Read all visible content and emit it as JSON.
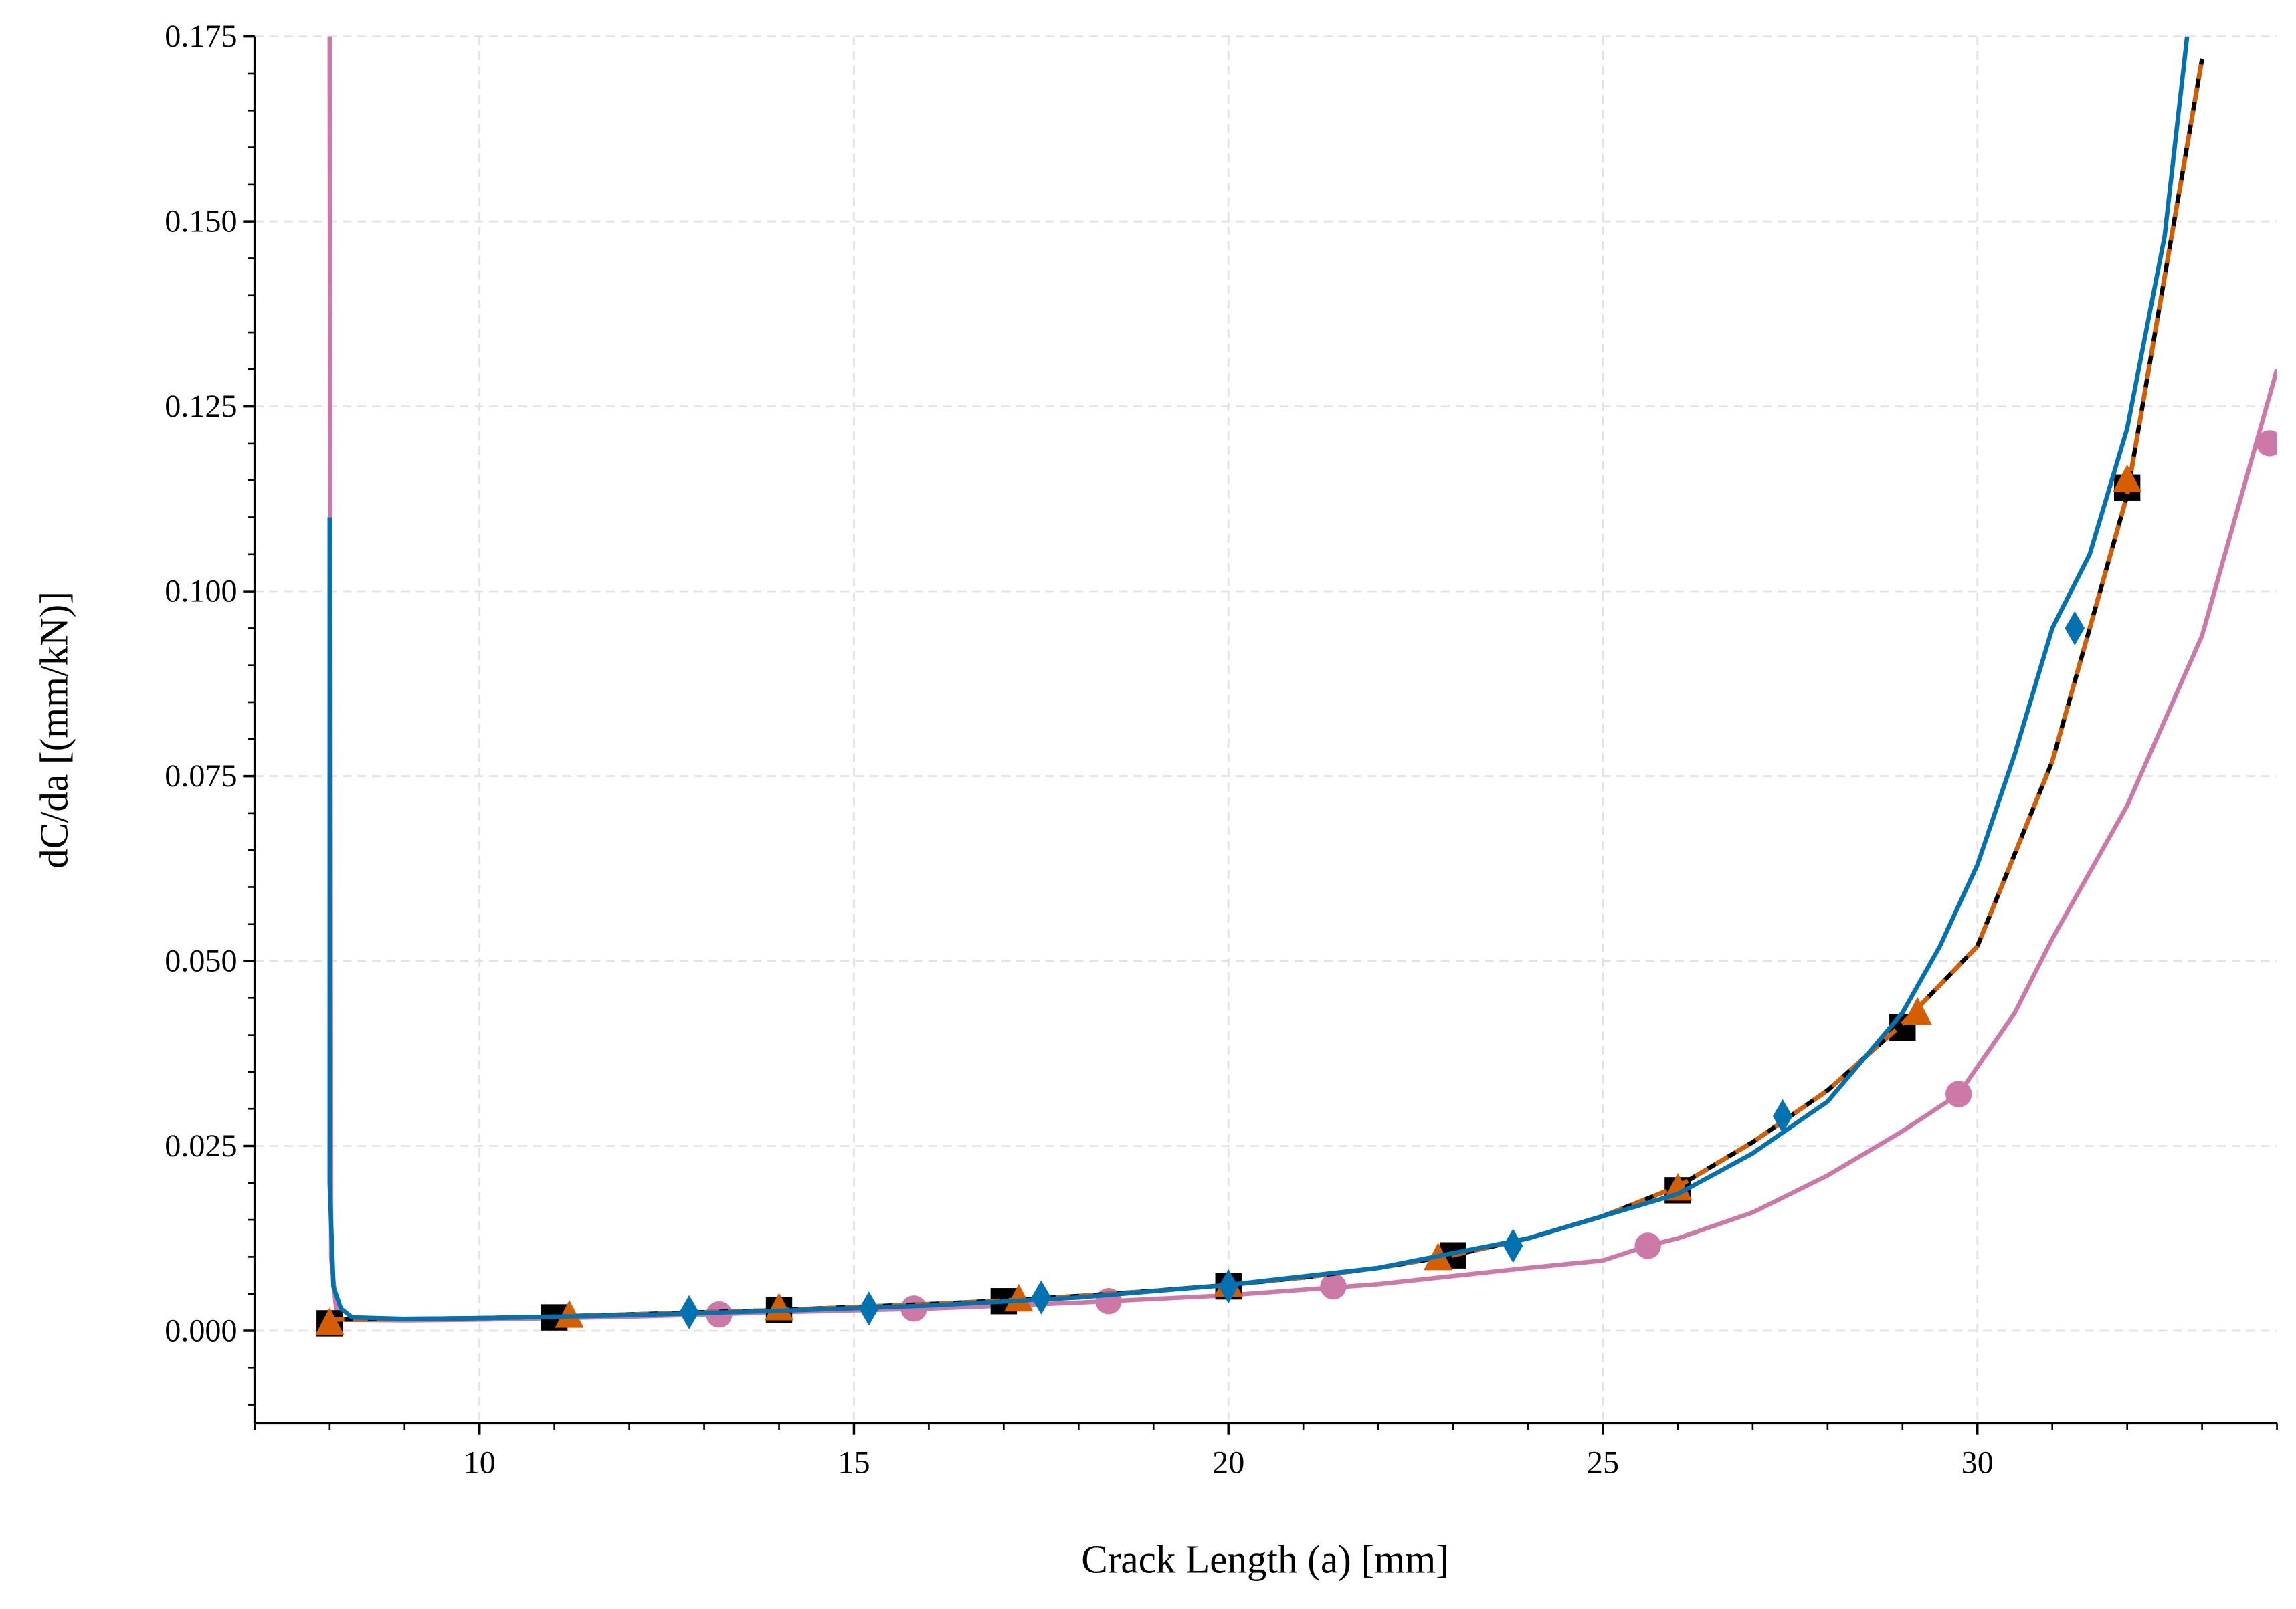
{
  "chart_data": {
    "type": "line",
    "x_label": "Crack Length (a) [mm]",
    "y_label": "dC/da [(mm/kN)]",
    "xlim": [
      7,
      34
    ],
    "ylim": [
      -0.0125,
      0.175
    ],
    "xticks": [
      10,
      15,
      20,
      25,
      30
    ],
    "xminorticks": [
      7,
      8,
      9,
      11,
      12,
      13,
      14,
      16,
      17,
      18,
      19,
      21,
      22,
      23,
      24,
      26,
      27,
      28,
      29,
      31,
      32,
      33,
      34
    ],
    "yticks": [
      {
        "value": 0,
        "label": "0.000"
      },
      0.025,
      {
        "value": 0.05,
        "label": "0.050"
      },
      0.075,
      {
        "value": 0.1,
        "label": "0.100"
      },
      0.125,
      {
        "value": 0.15,
        "label": "0.150"
      },
      0.175
    ],
    "yminorticks": [
      -0.01,
      -0.005,
      0.005,
      0.01,
      0.015,
      0.02,
      0.03,
      0.035,
      0.04,
      0.045,
      0.055,
      0.06,
      0.065,
      0.07,
      0.08,
      0.085,
      0.09,
      0.095,
      0.105,
      0.11,
      0.115,
      0.12,
      0.13,
      0.135,
      0.14,
      0.145,
      0.155,
      0.16,
      0.165,
      0.17
    ],
    "grid": true,
    "series": [
      {
        "color": "#cc79a7",
        "linestyle": "solid",
        "x": [
          8,
          8.02,
          8.1,
          9,
          10,
          12,
          14,
          16,
          18,
          20,
          22,
          24,
          25,
          25.6,
          26,
          27,
          28,
          29,
          29.75,
          30.5,
          31,
          32,
          33,
          34
        ],
        "values": [
          0.175,
          0.01,
          0.0015,
          0.0014,
          0.0015,
          0.0019,
          0.0025,
          0.003,
          0.0038,
          0.0048,
          0.0063,
          0.0085,
          0.0095,
          0.0115,
          0.0125,
          0.016,
          0.021,
          0.027,
          0.032,
          0.043,
          0.053,
          0.071,
          0.094,
          0.13
        ]
      },
      {
        "color": "#cc79a7",
        "linestyle": "none",
        "marker": "circle",
        "x": [
          13.2,
          15.8,
          18.4,
          21.4,
          25.6,
          29.75,
          33.9
        ],
        "values": [
          0.0022,
          0.003,
          0.004,
          0.006,
          0.0115,
          0.032,
          0.12
        ]
      },
      {
        "color": "#000000",
        "linestyle": "solid",
        "x": [
          8,
          9,
          10,
          11,
          12,
          13,
          14,
          15,
          16,
          17,
          18,
          19,
          20,
          21,
          22,
          23,
          24,
          25,
          26,
          27,
          28,
          29,
          30,
          31,
          32,
          33
        ],
        "values": [
          0.0015,
          0.0016,
          0.0017,
          0.0019,
          0.0022,
          0.0025,
          0.0028,
          0.0032,
          0.0036,
          0.0041,
          0.0047,
          0.0054,
          0.0062,
          0.0072,
          0.0085,
          0.0102,
          0.0125,
          0.0155,
          0.0195,
          0.0255,
          0.0325,
          0.0415,
          0.052,
          0.077,
          0.113,
          0.172
        ]
      },
      {
        "color": "#000000",
        "linestyle": "none",
        "marker": "square",
        "x": [
          8,
          11,
          14,
          17,
          20,
          23,
          26,
          29,
          32
        ],
        "values": [
          0.001,
          0.0018,
          0.0028,
          0.004,
          0.006,
          0.0102,
          0.019,
          0.041,
          0.114
        ]
      },
      {
        "color": "#d55e00",
        "linestyle": "dashed",
        "x": [
          8,
          9,
          10,
          11,
          12,
          13,
          14,
          15,
          16,
          17,
          18,
          19,
          20,
          21,
          22,
          23,
          24,
          25,
          26,
          27,
          28,
          29,
          30,
          31,
          32,
          33
        ],
        "values": [
          0.0015,
          0.0016,
          0.0017,
          0.0019,
          0.0022,
          0.0025,
          0.0028,
          0.0032,
          0.0036,
          0.0041,
          0.0047,
          0.0054,
          0.0062,
          0.0072,
          0.0085,
          0.0102,
          0.0125,
          0.0155,
          0.0195,
          0.0255,
          0.0325,
          0.0415,
          0.052,
          0.077,
          0.113,
          0.172
        ]
      },
      {
        "color": "#d55e00",
        "linestyle": "none",
        "marker": "triangle",
        "x": [
          8,
          11.2,
          14,
          17.2,
          20,
          22.8,
          26,
          29.2,
          32
        ],
        "values": [
          0.001,
          0.002,
          0.003,
          0.0042,
          0.0062,
          0.0098,
          0.0192,
          0.043,
          0.115
        ]
      },
      {
        "color": "#0072b2",
        "linestyle": "solid",
        "x": [
          8,
          8,
          8.05,
          8.15,
          8.3,
          9,
          10,
          12,
          14,
          16,
          18,
          20,
          22,
          24,
          25,
          26,
          27,
          28,
          29,
          29.5,
          30,
          30.5,
          31,
          31.5,
          32,
          32.5,
          32.8
        ],
        "values": [
          0.11,
          0.02,
          0.006,
          0.003,
          0.0018,
          0.0016,
          0.0017,
          0.0021,
          0.0027,
          0.0034,
          0.0045,
          0.0062,
          0.0085,
          0.0125,
          0.0155,
          0.0185,
          0.024,
          0.031,
          0.043,
          0.052,
          0.063,
          0.078,
          0.095,
          0.105,
          0.122,
          0.148,
          0.175
        ]
      },
      {
        "color": "#0072b2",
        "linestyle": "none",
        "marker": "diamond",
        "x": [
          12.8,
          15.2,
          17.5,
          20,
          23.8,
          27.4,
          31.3
        ],
        "values": [
          0.0025,
          0.003,
          0.0045,
          0.006,
          0.0115,
          0.029,
          0.095
        ]
      }
    ]
  }
}
